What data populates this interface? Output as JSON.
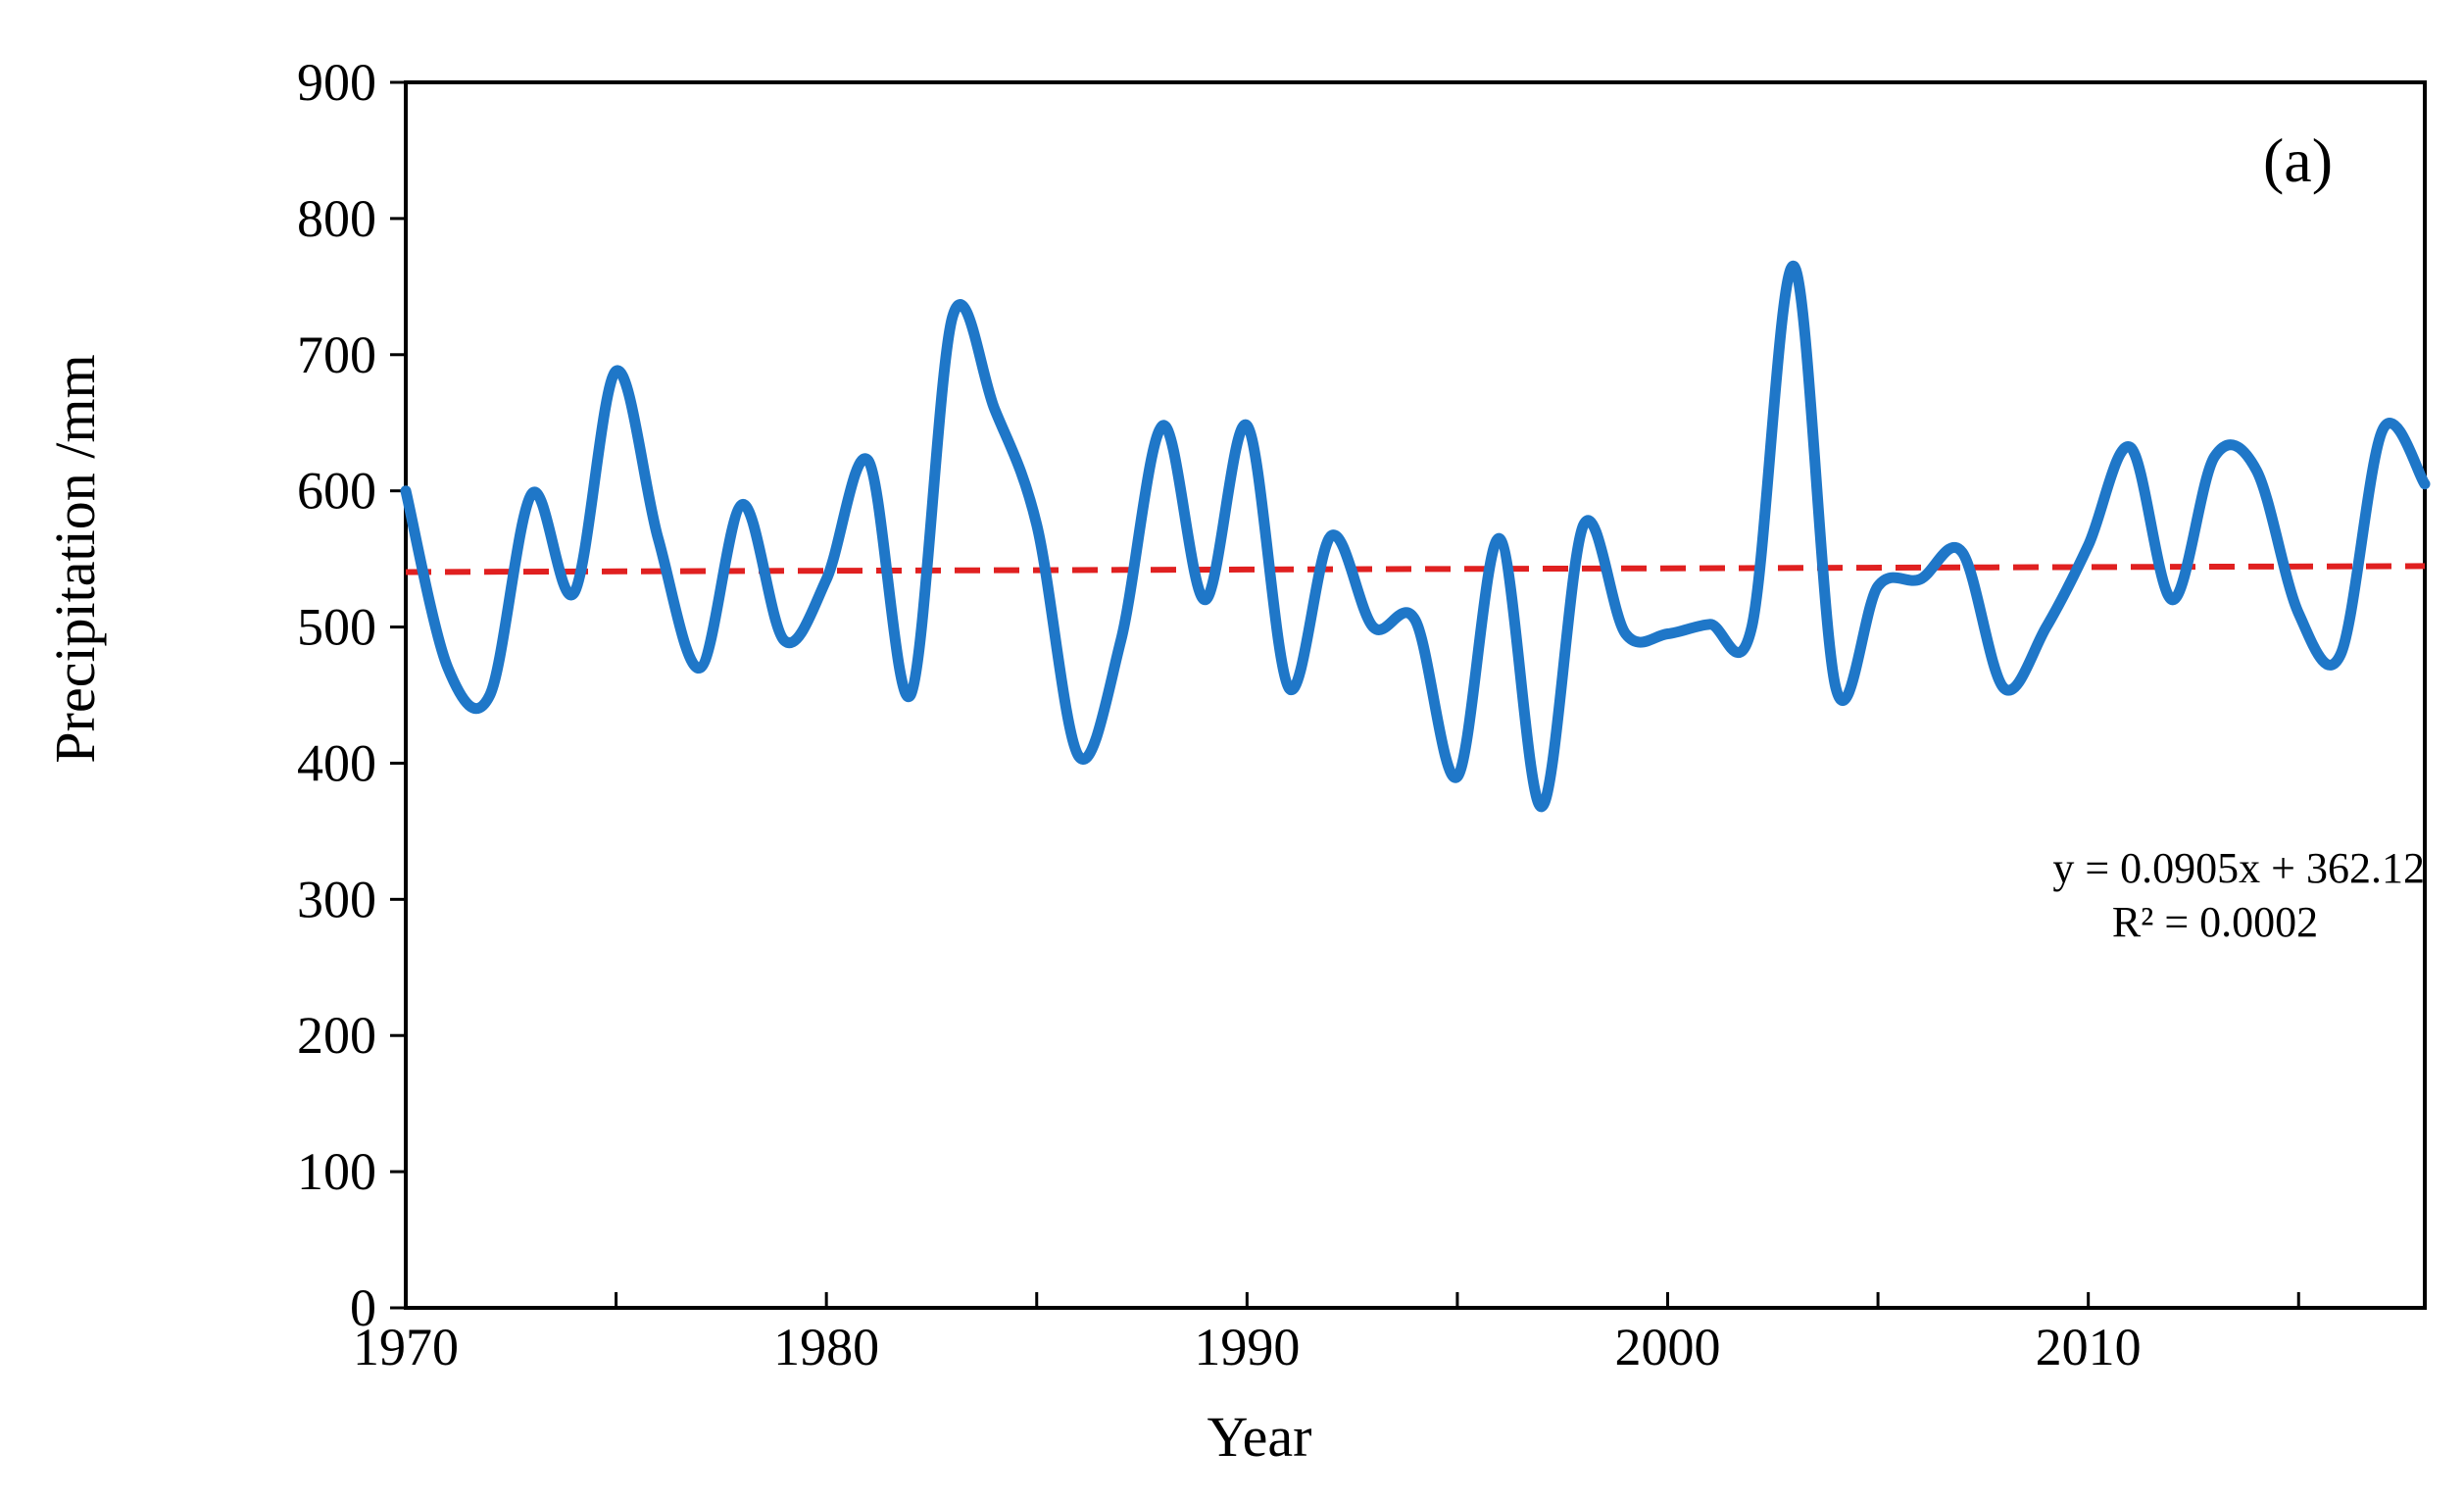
{
  "chart_data": {
    "type": "line",
    "panel_label": "(a)",
    "xlabel": "Year",
    "ylabel": "Precipitation /mm",
    "xlim": [
      1970,
      2018
    ],
    "ylim": [
      0,
      900
    ],
    "x_ticks": [
      1970,
      1980,
      1990,
      2000,
      2010
    ],
    "y_ticks": [
      0,
      100,
      200,
      300,
      400,
      500,
      600,
      700,
      800,
      900
    ],
    "grid": false,
    "series": [
      {
        "color": "#1f77c8",
        "x": [
          1970,
          1971,
          1972,
          1973,
          1974,
          1975,
          1976,
          1977,
          1978,
          1979,
          1980,
          1981,
          1982,
          1983,
          1984,
          1985,
          1986,
          1987,
          1988,
          1989,
          1990,
          1991,
          1992,
          1993,
          1994,
          1995,
          1996,
          1997,
          1998,
          1999,
          2000,
          2001,
          2002,
          2003,
          2004,
          2005,
          2006,
          2007,
          2008,
          2009,
          2010,
          2011,
          2012,
          2013,
          2014,
          2015,
          2016,
          2017,
          2018
        ],
        "y": [
          600,
          470,
          450,
          598,
          525,
          688,
          565,
          470,
          590,
          490,
          535,
          622,
          450,
          728,
          660,
          575,
          405,
          490,
          648,
          520,
          648,
          455,
          567,
          500,
          505,
          390,
          565,
          368,
          575,
          495,
          495,
          502,
          500,
          765,
          455,
          530,
          535,
          555,
          455,
          500,
          560,
          632,
          520,
          625,
          615,
          510,
          480,
          645,
          605
        ]
      }
    ],
    "trendline": {
      "color": "#e02020",
      "style": "dashed",
      "slope": 0.0905,
      "intercept": 362.12,
      "equation_text": "y = 0.0905x + 362.12",
      "r2_text": "R² = 0.0002"
    }
  }
}
